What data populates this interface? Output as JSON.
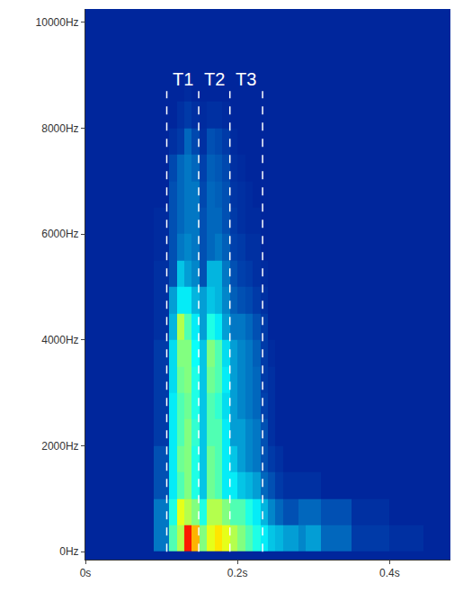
{
  "chart_data": {
    "type": "heatmap",
    "x": [
      0.025,
      0.075,
      0.105,
      0.115,
      0.125,
      0.135,
      0.145,
      0.155,
      0.165,
      0.175,
      0.185,
      0.195,
      0.205,
      0.215,
      0.225,
      0.235,
      0.245,
      0.255,
      0.265,
      0.275,
      0.285,
      0.295,
      0.325,
      0.375,
      0.425,
      0.465
    ],
    "y": [
      250,
      750,
      1250,
      1750,
      2250,
      2750,
      3250,
      3750,
      4250,
      4750,
      5250,
      5750,
      6250,
      6750,
      7250,
      7750,
      8250,
      8750,
      9250,
      9750
    ],
    "z": [
      [
        8,
        8,
        20,
        45,
        55,
        85,
        70,
        50,
        60,
        65,
        60,
        55,
        50,
        45,
        40,
        35,
        30,
        28,
        25,
        25,
        22,
        25,
        18,
        12,
        10,
        8
      ],
      [
        8,
        8,
        20,
        40,
        60,
        55,
        50,
        40,
        55,
        55,
        50,
        45,
        45,
        40,
        35,
        28,
        22,
        18,
        15,
        15,
        18,
        18,
        15,
        10,
        8,
        8
      ],
      [
        8,
        8,
        15,
        35,
        45,
        50,
        40,
        30,
        48,
        45,
        35,
        35,
        30,
        28,
        25,
        18,
        15,
        12,
        10,
        10,
        10,
        10,
        8,
        8,
        8,
        8
      ],
      [
        8,
        8,
        15,
        35,
        48,
        50,
        40,
        30,
        48,
        45,
        35,
        30,
        25,
        22,
        20,
        15,
        12,
        10,
        8,
        8,
        8,
        8,
        8,
        8,
        8,
        8
      ],
      [
        8,
        8,
        12,
        35,
        45,
        50,
        42,
        30,
        45,
        45,
        35,
        25,
        25,
        22,
        20,
        15,
        10,
        8,
        8,
        8,
        8,
        8,
        8,
        8,
        8,
        8
      ],
      [
        8,
        8,
        12,
        35,
        45,
        48,
        40,
        30,
        45,
        42,
        33,
        25,
        22,
        20,
        18,
        13,
        10,
        8,
        8,
        8,
        8,
        8,
        8,
        8,
        8,
        8
      ],
      [
        8,
        8,
        12,
        33,
        48,
        50,
        40,
        30,
        48,
        45,
        35,
        25,
        22,
        20,
        18,
        12,
        10,
        8,
        8,
        8,
        8,
        8,
        8,
        8,
        8,
        8
      ],
      [
        8,
        8,
        12,
        33,
        50,
        50,
        38,
        30,
        50,
        45,
        33,
        25,
        22,
        20,
        17,
        12,
        9,
        8,
        8,
        8,
        8,
        8,
        8,
        8,
        8,
        8
      ],
      [
        8,
        8,
        10,
        28,
        55,
        45,
        35,
        25,
        40,
        35,
        25,
        20,
        20,
        18,
        15,
        12,
        8,
        8,
        8,
        8,
        8,
        8,
        8,
        8,
        8,
        8
      ],
      [
        8,
        8,
        10,
        25,
        35,
        35,
        28,
        25,
        30,
        28,
        22,
        17,
        15,
        14,
        12,
        10,
        8,
        8,
        8,
        8,
        8,
        8,
        8,
        8,
        8,
        8
      ],
      [
        8,
        8,
        10,
        15,
        30,
        25,
        22,
        15,
        28,
        28,
        20,
        15,
        13,
        12,
        10,
        9,
        8,
        8,
        8,
        8,
        8,
        8,
        8,
        8,
        8,
        8
      ],
      [
        8,
        8,
        9,
        15,
        20,
        22,
        20,
        15,
        18,
        20,
        17,
        13,
        12,
        10,
        10,
        8,
        8,
        8,
        8,
        8,
        8,
        8,
        8,
        8,
        8,
        8
      ],
      [
        8,
        8,
        9,
        15,
        18,
        20,
        20,
        15,
        18,
        18,
        15,
        12,
        10,
        9,
        9,
        8,
        8,
        8,
        8,
        8,
        8,
        8,
        8,
        8,
        8,
        8
      ],
      [
        8,
        8,
        8,
        15,
        18,
        20,
        20,
        14,
        18,
        17,
        15,
        11,
        10,
        9,
        8,
        8,
        8,
        8,
        8,
        8,
        8,
        8,
        8,
        8,
        8,
        8
      ],
      [
        8,
        8,
        8,
        14,
        18,
        20,
        18,
        13,
        17,
        16,
        14,
        10,
        9,
        8,
        8,
        8,
        8,
        8,
        8,
        8,
        8,
        8,
        8,
        8,
        8,
        8
      ],
      [
        8,
        8,
        8,
        10,
        12,
        18,
        14,
        10,
        15,
        14,
        12,
        9,
        8,
        8,
        8,
        8,
        8,
        8,
        8,
        8,
        8,
        8,
        8,
        8,
        8,
        8
      ],
      [
        8,
        8,
        8,
        8,
        10,
        12,
        10,
        9,
        10,
        10,
        9,
        8,
        8,
        8,
        8,
        8,
        8,
        8,
        8,
        8,
        8,
        8,
        8,
        8,
        8,
        8
      ],
      [
        8,
        8,
        8,
        8,
        8,
        9,
        8,
        8,
        8,
        8,
        8,
        8,
        8,
        8,
        8,
        8,
        8,
        8,
        8,
        8,
        8,
        8,
        8,
        8,
        8,
        8
      ],
      [
        8,
        8,
        8,
        8,
        8,
        8,
        8,
        8,
        8,
        8,
        8,
        8,
        8,
        8,
        8,
        8,
        8,
        8,
        8,
        8,
        8,
        8,
        8,
        8,
        8,
        8
      ],
      [
        8,
        8,
        8,
        8,
        8,
        8,
        8,
        8,
        8,
        8,
        8,
        8,
        8,
        8,
        8,
        8,
        8,
        8,
        8,
        8,
        8,
        8,
        8,
        8,
        8,
        8
      ]
    ],
    "zlim": [
      0,
      100
    ],
    "xlim": [
      0,
      0.48
    ],
    "xticks": [
      {
        "value": 0,
        "label": "0s"
      },
      {
        "value": 0.2,
        "label": "0.2s"
      },
      {
        "value": 0.4,
        "label": "0.4s"
      }
    ],
    "ylim": [
      -150,
      10250
    ],
    "yticks": [
      {
        "value": 0,
        "label": "0Hz"
      },
      {
        "value": 2000,
        "label": "2000Hz"
      },
      {
        "value": 4000,
        "label": "4000Hz"
      },
      {
        "value": 6000,
        "label": "6000Hz"
      },
      {
        "value": 8000,
        "label": "8000Hz"
      },
      {
        "value": 10000,
        "label": "10000Hz"
      }
    ],
    "grid": false,
    "boundaries": [
      0.107,
      0.149,
      0.19,
      0.233
    ],
    "boundary_top": 8700,
    "segment_labels": [
      "T1",
      "T2",
      "T3"
    ]
  }
}
